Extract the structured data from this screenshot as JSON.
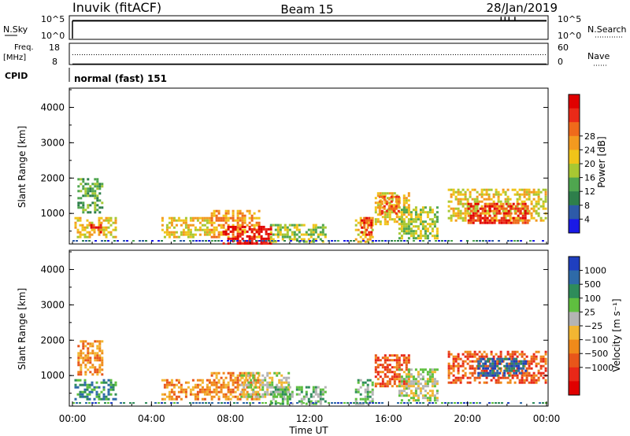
{
  "header": {
    "station": "Inuvik (fitACF)",
    "beam": "Beam 15",
    "date": "28/Jan/2019"
  },
  "panels": {
    "nsky": {
      "left_label": "N.Sky",
      "right_label": "N.Search",
      "ticks_left": [
        "10^5",
        "10^0"
      ],
      "ticks_right": [
        "10^5",
        "10^0"
      ],
      "typical_level_log10": 4.2,
      "spike_times_hours": [
        21.7,
        21.9,
        22.1,
        22.4
      ]
    },
    "freq": {
      "left_label_1": "Freq.",
      "left_label_2": "[MHz]",
      "right_label": "Nave",
      "ticks_left": [
        "18",
        "8"
      ],
      "ticks_right": [
        "60",
        "0"
      ],
      "freq_level_mhz": 10.5,
      "nave_level": 30
    },
    "cpid": {
      "label": "CPID",
      "text": "normal (fast) 151"
    }
  },
  "chart_data": [
    {
      "type": "heatmap",
      "name": "power",
      "ylabel": "Slant Range [km]",
      "xlabel": "",
      "xlim_hours": [
        0,
        24
      ],
      "ylim": [
        180,
        4500
      ],
      "yticks": [
        "1000",
        "2000",
        "3000",
        "4000"
      ],
      "colorbar_label": "Power [dB]",
      "colorbar_ticks": [
        "4",
        "8",
        "12",
        "16",
        "20",
        "24",
        "28"
      ],
      "colors": [
        "#1a1ae6",
        "#2d5aa8",
        "#2e7f4b",
        "#4fa64f",
        "#a8c832",
        "#f0c419",
        "#f39a1f",
        "#ef6a1b",
        "#ea2a18",
        "#e00000"
      ],
      "echo_regions": [
        {
          "t0": 0.25,
          "t1": 1.5,
          "r0": 1000,
          "r1": 2000,
          "level": 3
        },
        {
          "t0": 0.1,
          "t1": 2.2,
          "r0": 350,
          "r1": 900,
          "level": 5
        },
        {
          "t0": 0.9,
          "t1": 1.4,
          "r0": 450,
          "r1": 700,
          "level": 8
        },
        {
          "t0": 4.5,
          "t1": 7.0,
          "r0": 350,
          "r1": 900,
          "level": 5
        },
        {
          "t0": 7.0,
          "t1": 9.5,
          "r0": 350,
          "r1": 1100,
          "level": 6
        },
        {
          "t0": 7.6,
          "t1": 10.0,
          "r0": 180,
          "r1": 650,
          "level": 9
        },
        {
          "t0": 10.0,
          "t1": 12.8,
          "r0": 200,
          "r1": 700,
          "level": 4
        },
        {
          "t0": 14.3,
          "t1": 15.2,
          "r0": 200,
          "r1": 900,
          "level": 5
        },
        {
          "t0": 14.6,
          "t1": 15.1,
          "r0": 400,
          "r1": 900,
          "level": 8
        },
        {
          "t0": 15.3,
          "t1": 17.0,
          "r0": 700,
          "r1": 1600,
          "level": 5
        },
        {
          "t0": 15.5,
          "t1": 16.5,
          "r0": 1000,
          "r1": 1500,
          "level": 7
        },
        {
          "t0": 16.5,
          "t1": 18.5,
          "r0": 300,
          "r1": 1200,
          "level": 4
        },
        {
          "t0": 19.0,
          "t1": 24.0,
          "r0": 800,
          "r1": 1700,
          "level": 5
        },
        {
          "t0": 20.0,
          "t1": 23.0,
          "r0": 750,
          "r1": 1300,
          "level": 8
        }
      ]
    },
    {
      "type": "heatmap",
      "name": "velocity",
      "ylabel": "Slant Range [km]",
      "xlabel": "Time UT",
      "xlim_hours": [
        0,
        24
      ],
      "ylim": [
        180,
        4500
      ],
      "xticks": [
        "00:00",
        "04:00",
        "08:00",
        "12:00",
        "16:00",
        "20:00",
        "00:00"
      ],
      "yticks": [
        "1000",
        "2000",
        "3000",
        "4000"
      ],
      "colorbar_label": "Velocity [m s⁻¹]",
      "colorbar_ticks": [
        "1000",
        "500",
        "100",
        "25",
        "−25",
        "−100",
        "−500",
        "−1000"
      ],
      "colors": [
        "#1f3fbf",
        "#2e6aa8",
        "#2e8c5a",
        "#5fbf3f",
        "#b4b4b4",
        "#f2b632",
        "#f08a1a",
        "#e8561a",
        "#e82818",
        "#e00000"
      ],
      "echo_regions": [
        {
          "t0": 0.25,
          "t1": 1.5,
          "r0": 1000,
          "r1": 2000,
          "level": 6
        },
        {
          "t0": 0.1,
          "t1": 2.2,
          "r0": 350,
          "r1": 900,
          "level": 2
        },
        {
          "t0": 4.5,
          "t1": 7.0,
          "r0": 350,
          "r1": 900,
          "level": 6
        },
        {
          "t0": 7.0,
          "t1": 9.5,
          "r0": 350,
          "r1": 1100,
          "level": 6
        },
        {
          "t0": 8.5,
          "t1": 11.0,
          "r0": 400,
          "r1": 1100,
          "level": 4
        },
        {
          "t0": 10.0,
          "t1": 12.8,
          "r0": 200,
          "r1": 700,
          "level": 3
        },
        {
          "t0": 14.3,
          "t1": 15.2,
          "r0": 200,
          "r1": 900,
          "level": 3
        },
        {
          "t0": 15.3,
          "t1": 17.0,
          "r0": 700,
          "r1": 1600,
          "level": 7
        },
        {
          "t0": 16.5,
          "t1": 18.5,
          "r0": 300,
          "r1": 1200,
          "level": 4
        },
        {
          "t0": 19.0,
          "t1": 24.0,
          "r0": 800,
          "r1": 1700,
          "level": 7
        },
        {
          "t0": 20.5,
          "t1": 23.0,
          "r0": 1000,
          "r1": 1500,
          "level": 1
        }
      ]
    }
  ]
}
